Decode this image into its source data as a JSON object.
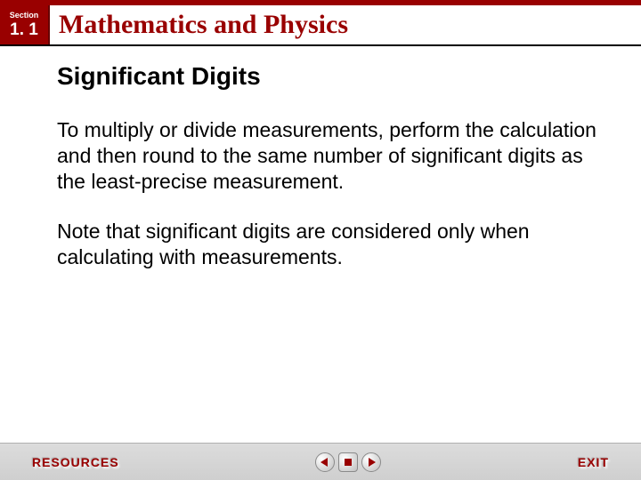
{
  "colors": {
    "brand_red": "#990000",
    "text_black": "#000000",
    "footer_bg_top": "#dcdcdc",
    "footer_bg_bottom": "#cfcfcf"
  },
  "header": {
    "section_label": "Section",
    "section_number": "1. 1",
    "title": "Mathematics and Physics"
  },
  "content": {
    "subheading": "Significant Digits",
    "para1": "To multiply or divide measurements, perform the calculation and then round to the same number of significant digits as the least-precise measurement.",
    "para2": "Note that significant digits are considered only when calculating with measurements."
  },
  "footer": {
    "resources_label": "RESOURCES",
    "exit_label": "EXIT"
  }
}
